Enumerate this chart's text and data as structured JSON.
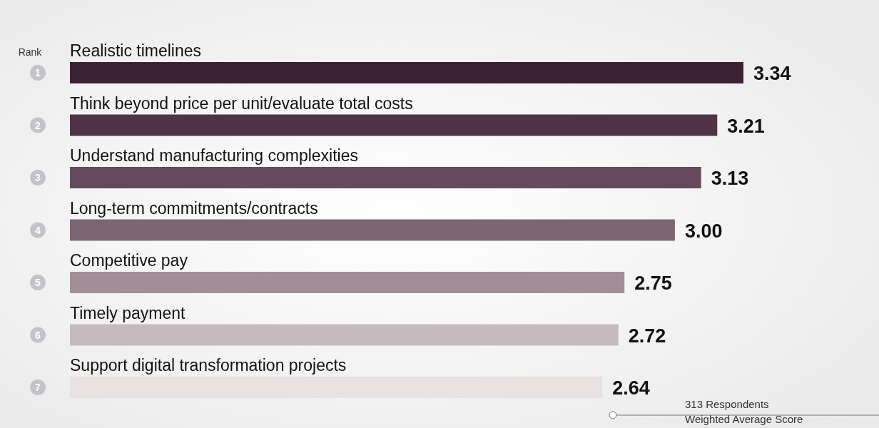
{
  "chart_data": {
    "type": "bar",
    "orientation": "horizontal",
    "categories": [
      "Realistic timelines",
      "Think beyond price per unit/evaluate total costs",
      "Understand manufacturing complexities",
      "Long-term commitments/contracts",
      "Competitive pay",
      "Timely payment",
      "Support digital transformation projects"
    ],
    "values": [
      3.34,
      3.21,
      3.13,
      3.0,
      2.75,
      2.72,
      2.64
    ],
    "value_labels": [
      "3.34",
      "3.21",
      "3.13",
      "3.00",
      "2.75",
      "2.72",
      "2.64"
    ],
    "colors": [
      "#3a2234",
      "#4e3446",
      "#65495d",
      "#7d6674",
      "#a18f98",
      "#c6babf",
      "#e8e2e3"
    ],
    "annotations": [
      "Rank",
      "1",
      "2",
      "3",
      "4",
      "5",
      "6",
      "7",
      "313 Respondents",
      "Weighted Average Score"
    ],
    "grid": false
  }
}
